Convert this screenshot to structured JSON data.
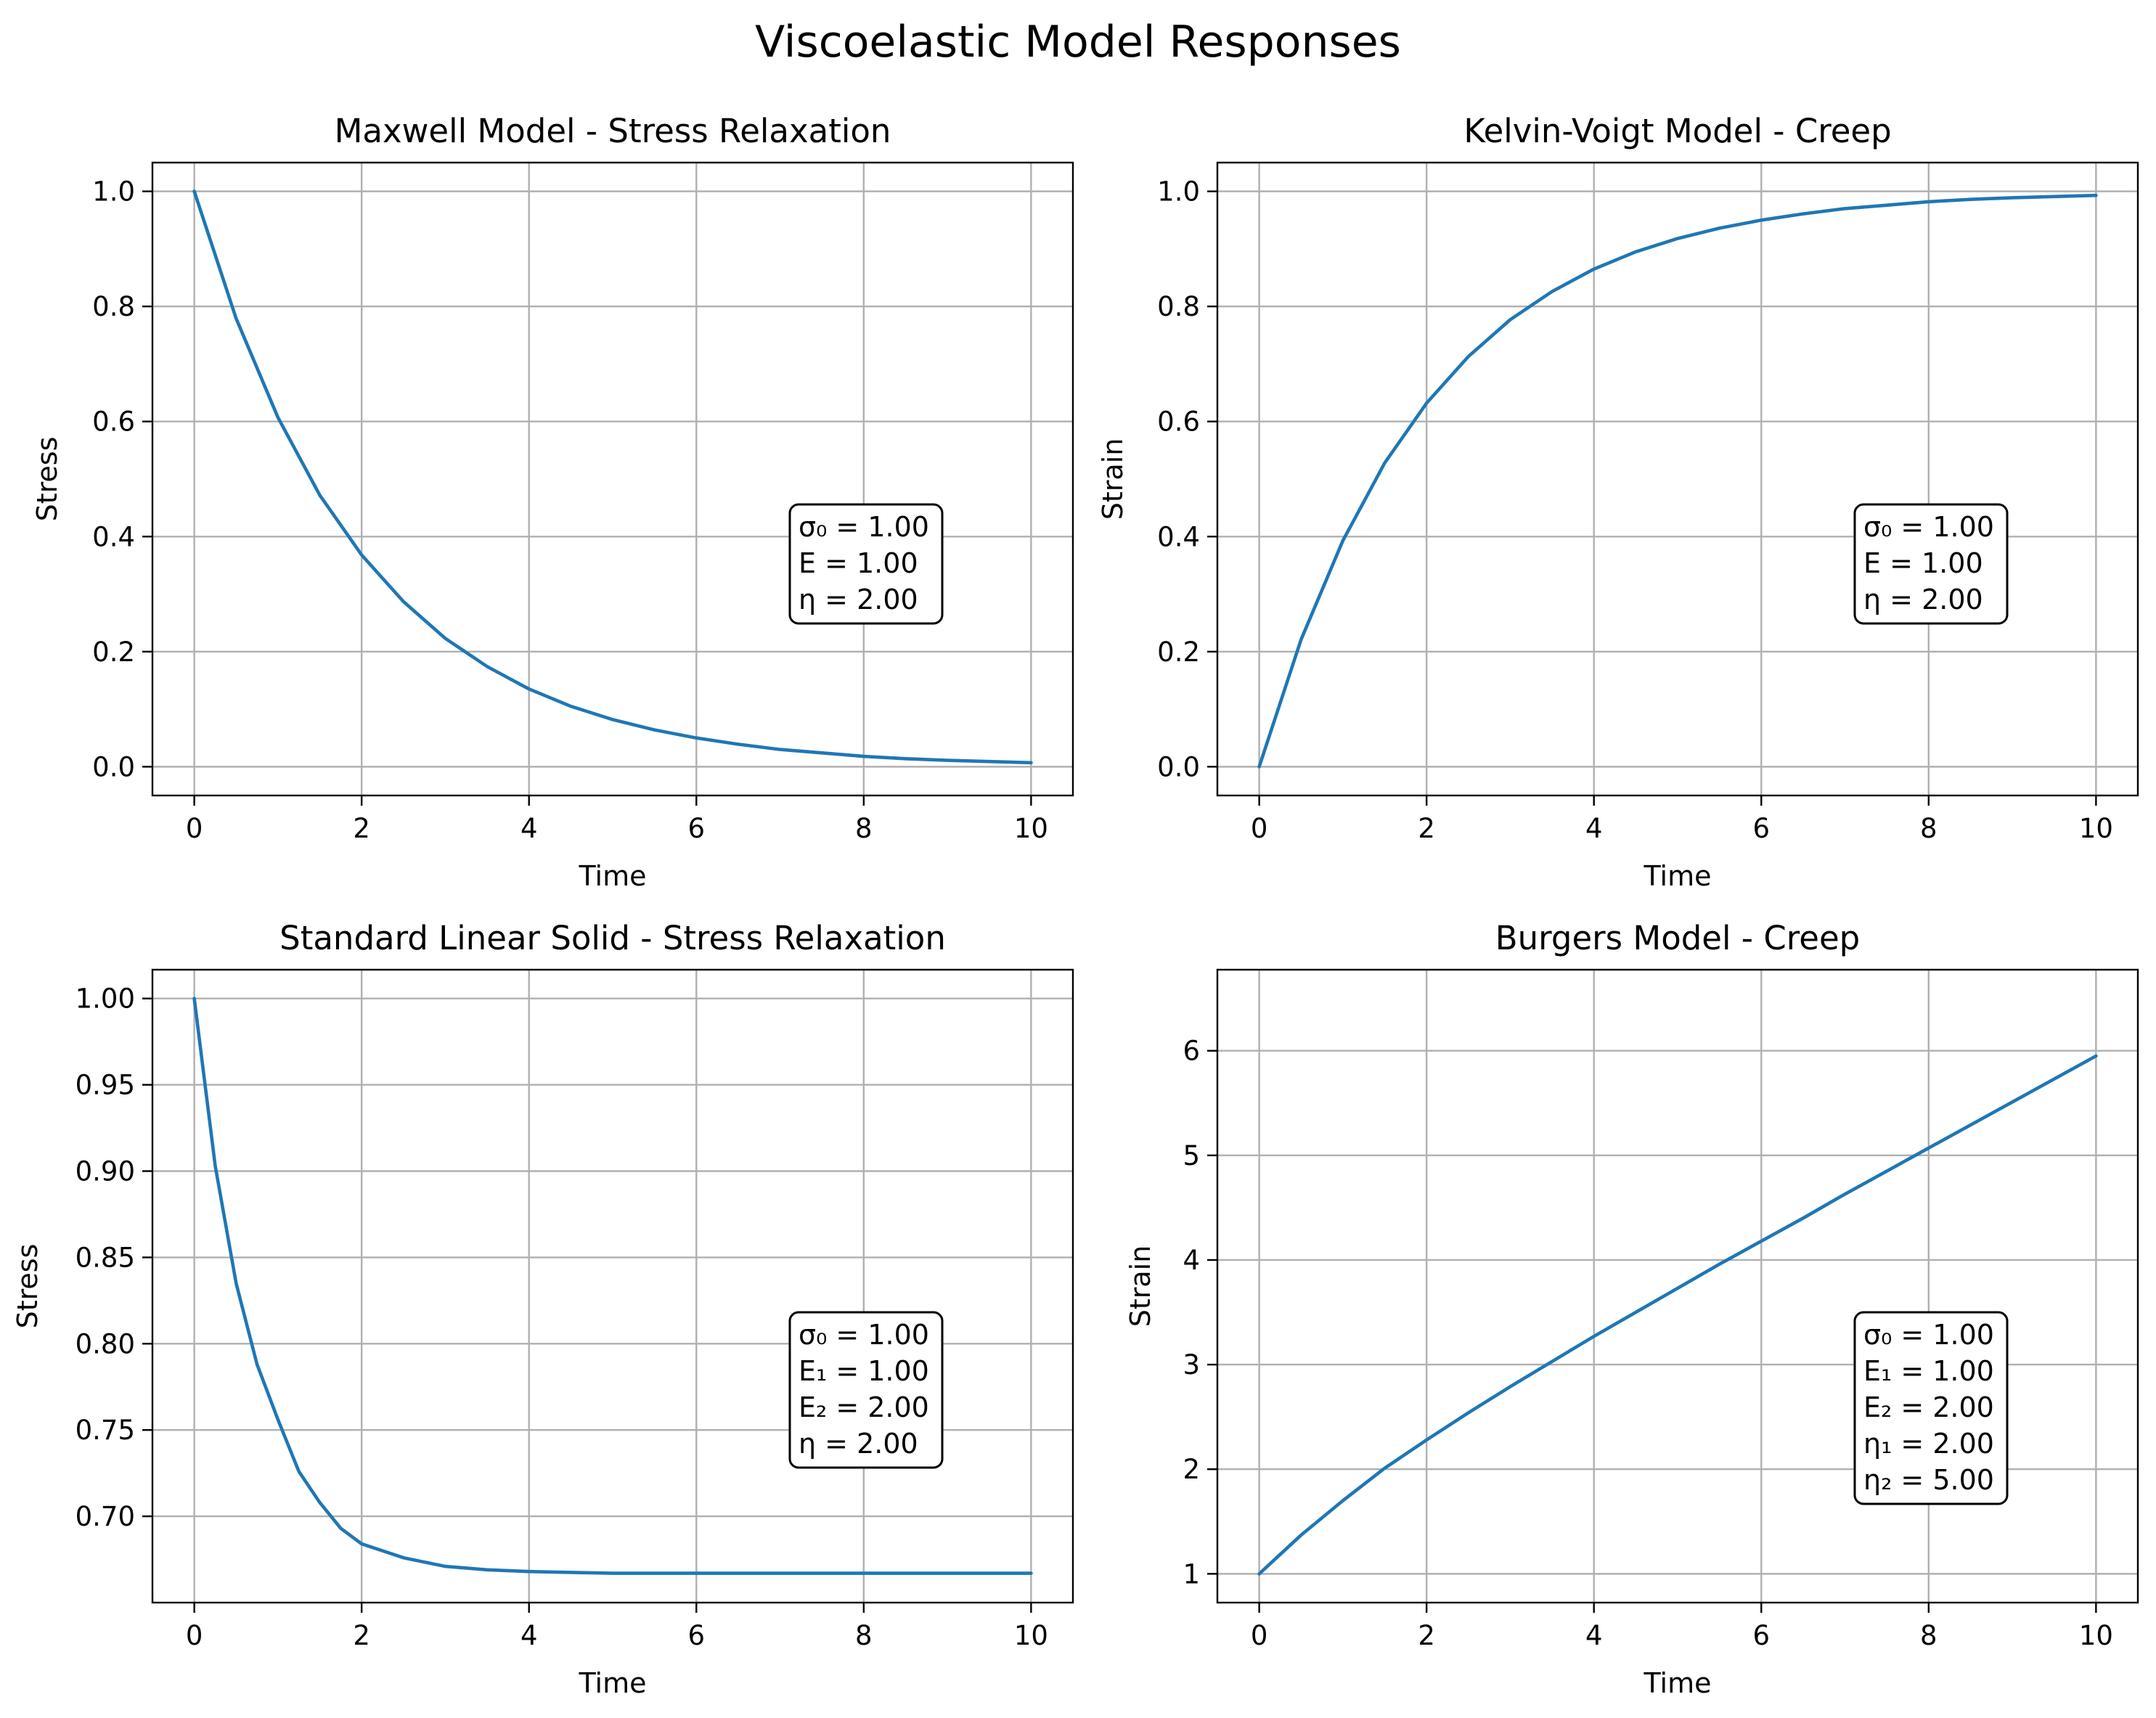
{
  "figure": {
    "title": "Viscoelastic Model Responses"
  },
  "colors": {
    "series": "#1f77b4",
    "grid": "#b0b0b0",
    "frame": "#000000"
  },
  "chart_data": [
    {
      "type": "line",
      "title": "Maxwell Model - Stress Relaxation",
      "xlabel": "Time",
      "ylabel": "Stress",
      "xlim": [
        -0.5,
        10.5
      ],
      "ylim": [
        -0.05,
        1.05
      ],
      "xticks": [
        0,
        2,
        4,
        6,
        8,
        10
      ],
      "xtick_labels": [
        "0",
        "2",
        "4",
        "6",
        "8",
        "10"
      ],
      "yticks": [
        0.0,
        0.2,
        0.4,
        0.6,
        0.8,
        1.0
      ],
      "ytick_labels": [
        "0.0",
        "0.2",
        "0.4",
        "0.6",
        "0.8",
        "1.0"
      ],
      "grid": true,
      "series": [
        {
          "name": "Stress",
          "x": [
            0,
            0.5,
            1,
            1.5,
            2,
            2.5,
            3,
            3.5,
            4,
            4.5,
            5,
            5.5,
            6,
            6.5,
            7,
            7.5,
            8,
            8.5,
            9,
            9.5,
            10
          ],
          "y": [
            1.0,
            0.779,
            0.607,
            0.472,
            0.368,
            0.287,
            0.223,
            0.174,
            0.135,
            0.105,
            0.082,
            0.064,
            0.05,
            0.039,
            0.03,
            0.024,
            0.018,
            0.014,
            0.011,
            0.009,
            0.007
          ]
        }
      ],
      "annotation": [
        "σ₀ = 1.00",
        "E = 1.00",
        "η = 2.00"
      ]
    },
    {
      "type": "line",
      "title": "Kelvin-Voigt Model - Creep",
      "xlabel": "Time",
      "ylabel": "Strain",
      "xlim": [
        -0.5,
        10.5
      ],
      "ylim": [
        -0.05,
        1.05
      ],
      "xticks": [
        0,
        2,
        4,
        6,
        8,
        10
      ],
      "xtick_labels": [
        "0",
        "2",
        "4",
        "6",
        "8",
        "10"
      ],
      "yticks": [
        0.0,
        0.2,
        0.4,
        0.6,
        0.8,
        1.0
      ],
      "ytick_labels": [
        "0.0",
        "0.2",
        "0.4",
        "0.6",
        "0.8",
        "1.0"
      ],
      "grid": true,
      "series": [
        {
          "name": "Strain",
          "x": [
            0,
            0.5,
            1,
            1.5,
            2,
            2.5,
            3,
            3.5,
            4,
            4.5,
            5,
            5.5,
            6,
            6.5,
            7,
            7.5,
            8,
            8.5,
            9,
            9.5,
            10
          ],
          "y": [
            0.0,
            0.221,
            0.393,
            0.528,
            0.632,
            0.713,
            0.777,
            0.826,
            0.865,
            0.895,
            0.918,
            0.936,
            0.95,
            0.961,
            0.97,
            0.976,
            0.982,
            0.986,
            0.989,
            0.991,
            0.993
          ]
        }
      ],
      "annotation": [
        "σ₀ = 1.00",
        "E = 1.00",
        "η = 2.00"
      ]
    },
    {
      "type": "line",
      "title": "Standard Linear Solid - Stress Relaxation",
      "xlabel": "Time",
      "ylabel": "Stress",
      "xlim": [
        -0.5,
        10.5
      ],
      "ylim": [
        0.65,
        1.0167
      ],
      "xticks": [
        0,
        2,
        4,
        6,
        8,
        10
      ],
      "xtick_labels": [
        "0",
        "2",
        "4",
        "6",
        "8",
        "10"
      ],
      "yticks": [
        0.7,
        0.75,
        0.8,
        0.85,
        0.9,
        0.95,
        1.0
      ],
      "ytick_labels": [
        "0.70",
        "0.75",
        "0.80",
        "0.85",
        "0.90",
        "0.95",
        "1.00"
      ],
      "grid": true,
      "series": [
        {
          "name": "Stress",
          "x": [
            0,
            0.25,
            0.5,
            0.75,
            1,
            1.25,
            1.5,
            1.75,
            2,
            2.5,
            3,
            3.5,
            4,
            5,
            6,
            7,
            8,
            9,
            10
          ],
          "y": [
            1.0,
            0.903,
            0.835,
            0.788,
            0.756,
            0.726,
            0.708,
            0.693,
            0.684,
            0.676,
            0.671,
            0.669,
            0.668,
            0.667,
            0.667,
            0.667,
            0.667,
            0.667,
            0.667
          ]
        }
      ],
      "annotation": [
        "σ₀ = 1.00",
        "E₁ = 1.00",
        "E₂ = 2.00",
        "η = 2.00"
      ]
    },
    {
      "type": "line",
      "title": "Burgers Model - Creep",
      "xlabel": "Time",
      "ylabel": "Strain",
      "xlim": [
        -0.5,
        10.5
      ],
      "ylim": [
        0.725,
        6.775
      ],
      "xticks": [
        0,
        2,
        4,
        6,
        8,
        10
      ],
      "xtick_labels": [
        "0",
        "2",
        "4",
        "6",
        "8",
        "10"
      ],
      "yticks": [
        1,
        2,
        3,
        4,
        5,
        6
      ],
      "ytick_labels": [
        "1",
        "2",
        "3",
        "4",
        "5",
        "6"
      ],
      "grid": true,
      "series": [
        {
          "name": "Strain",
          "x": [
            0,
            0.5,
            1,
            1.5,
            2,
            2.5,
            3,
            3.5,
            4,
            4.5,
            5,
            5.5,
            6,
            6.5,
            7,
            7.5,
            8,
            8.5,
            9,
            9.5,
            10
          ],
          "y": [
            1.0,
            1.37,
            1.7,
            2.01,
            2.28,
            2.54,
            2.79,
            3.03,
            3.27,
            3.5,
            3.73,
            3.96,
            4.18,
            4.4,
            4.63,
            4.85,
            5.07,
            5.29,
            5.51,
            5.73,
            5.95
          ]
        }
      ],
      "annotation": [
        "σ₀ = 1.00",
        "E₁ = 1.00",
        "E₂ = 2.00",
        "η₁ = 2.00",
        "η₂ = 5.00"
      ]
    }
  ]
}
